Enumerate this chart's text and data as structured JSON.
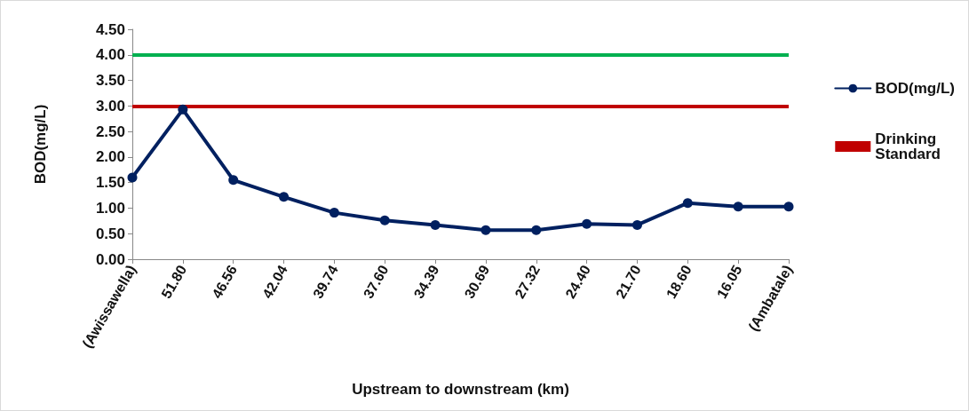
{
  "chart_data": {
    "type": "line",
    "xlabel": "Upstream to downstream (km)",
    "ylabel": "BOD(mg/L)",
    "categories": [
      "(Awissawella)",
      "51.80",
      "46.56",
      "42.04",
      "39.74",
      "37.60",
      "34.39",
      "30.69",
      "27.32",
      "24.40",
      "21.70",
      "18.60",
      "16.05",
      "(Ambatale)"
    ],
    "series": [
      {
        "name": "BOD(mg/L)",
        "color": "#002060",
        "values": [
          1.6,
          2.93,
          1.55,
          1.22,
          0.91,
          0.76,
          0.67,
          0.57,
          0.57,
          0.69,
          0.67,
          1.1,
          1.03,
          1.03
        ]
      }
    ],
    "ref_lines": [
      {
        "axis": "y",
        "value": 4,
        "label": null,
        "color": "#00b050"
      },
      {
        "axis": "y",
        "value": 3,
        "label": "Drinking Standard",
        "color": "#c00000"
      }
    ],
    "ylim": [
      0,
      4.5
    ],
    "yticks": [
      {
        "value": 0,
        "label": "0.00"
      },
      {
        "value": 0.5,
        "label": "0.50"
      },
      {
        "value": 1,
        "label": "1.00"
      },
      {
        "value": 1.5,
        "label": "1.50"
      },
      {
        "value": 2,
        "label": "2.00"
      },
      {
        "value": 2.5,
        "label": "2.50"
      },
      {
        "value": 3,
        "label": "3.00"
      },
      {
        "value": 3.5,
        "label": "3.50"
      },
      {
        "value": 4,
        "label": "4.00"
      },
      {
        "value": 4.5,
        "label": "4.50"
      }
    ],
    "grid": false,
    "legend": "right",
    "marker": "circle",
    "line_style": "solid"
  }
}
